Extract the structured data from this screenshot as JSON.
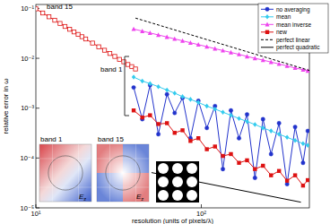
{
  "chart_data": {
    "type": "line",
    "x_label": "resolution (units of pixels/λ)",
    "y_label": "relative error in ω",
    "log": true,
    "grid": false,
    "legend": "upper right",
    "xlim": [
      10,
      450
    ],
    "ylim": [
      1e-05,
      0.12
    ],
    "xticks": [
      {
        "value": 10,
        "label": "10¹"
      },
      {
        "value": 100,
        "label": "10²"
      }
    ],
    "yticks": [
      {
        "value": 0.1,
        "label": "10⁻¹"
      },
      {
        "value": 0.01,
        "label": "10⁻²"
      },
      {
        "value": 0.001,
        "label": "10⁻³"
      },
      {
        "value": 0.0001,
        "label": "10⁻⁴"
      },
      {
        "value": 1e-05,
        "label": "10⁻⁵"
      }
    ],
    "annotations": [
      "band 15",
      "band 1",
      "band 1",
      "band 15",
      "Ez",
      "Ez"
    ],
    "series": [
      {
        "name": "no averaging",
        "color": "#2233cc",
        "marker": "circle",
        "line_style": "solid",
        "x": [
          39,
          44,
          49,
          55,
          62,
          69,
          77,
          86,
          96,
          108,
          121,
          135,
          151,
          169,
          189,
          211,
          236,
          264,
          295,
          330,
          369,
          412,
          440
        ],
        "values": [
          0.0026,
          0.0006,
          0.0029,
          0.0003,
          0.0019,
          0.0008,
          0.0016,
          0.00025,
          0.0014,
          0.0004,
          0.0011,
          6e-05,
          0.0009,
          0.00025,
          0.00075,
          4e-05,
          0.0006,
          0.00012,
          0.0005,
          3e-05,
          0.00042,
          8e-05,
          0.00035
        ]
      },
      {
        "name": "mean",
        "color": "#33ccee",
        "marker": "diamond",
        "line_style": "solid",
        "x": [
          39,
          44,
          49,
          55,
          62,
          69,
          77,
          86,
          96,
          108,
          121,
          135,
          151,
          169,
          189,
          211,
          236,
          264,
          295,
          330,
          369,
          412,
          440
        ],
        "values": [
          0.0042,
          0.0035,
          0.0031,
          0.0027,
          0.0023,
          0.002,
          0.0017,
          0.0015,
          0.0013,
          0.0011,
          0.00096,
          0.00083,
          0.00072,
          0.00062,
          0.00054,
          0.00047,
          0.0004,
          0.00035,
          0.0003,
          0.00026,
          0.000225,
          0.000195,
          0.00018
        ]
      },
      {
        "name": "mean inverse",
        "color": "#ee44ee",
        "marker": "triangle",
        "line_style": "solid",
        "x": [
          39,
          44,
          49,
          55,
          62,
          69,
          77,
          86,
          96,
          108,
          121,
          135,
          151,
          169,
          189,
          211,
          236,
          264,
          295,
          330,
          369,
          412,
          440
        ],
        "values": [
          0.0386,
          0.0351,
          0.0322,
          0.0294,
          0.0267,
          0.0245,
          0.0224,
          0.0205,
          0.0188,
          0.0171,
          0.0156,
          0.0143,
          0.0131,
          0.012,
          0.0109,
          0.01,
          0.0092,
          0.0084,
          0.0077,
          0.007,
          0.0064,
          0.0059,
          0.0056
        ]
      },
      {
        "name": "new",
        "color": "#dd1111",
        "marker": "square",
        "line_style": "solid",
        "x": [
          39,
          44,
          49,
          55,
          62,
          69,
          77,
          86,
          96,
          108,
          121,
          135,
          151,
          169,
          189,
          211,
          236,
          264,
          295,
          330,
          369,
          412,
          440
        ],
        "values": [
          0.0009,
          0.00065,
          0.00072,
          0.00048,
          0.0005,
          0.00032,
          0.00036,
          0.00022,
          0.00025,
          0.00015,
          0.00017,
          0.00011,
          0.00012,
          8e-05,
          9e-05,
          6e-05,
          7e-05,
          4.5e-05,
          5.5e-05,
          3.5e-05,
          4.5e-05,
          2.8e-05,
          3.6e-05
        ]
      },
      {
        "name": "perfect linear",
        "color": "#000000",
        "marker": "none",
        "line_style": "dashed",
        "x": [
          40,
          450
        ],
        "values": [
          0.064,
          0.0057
        ]
      },
      {
        "name": "perfect quadratic",
        "color": "#000000",
        "marker": "none",
        "line_style": "solid",
        "x": [
          50,
          400
        ],
        "values": [
          5.1e-05,
          1.3e-05
        ]
      },
      {
        "color": "#dd1111",
        "marker": "open-square",
        "line_style": "solid",
        "x": [
          10,
          11,
          12,
          13,
          14,
          15,
          16,
          17,
          18,
          19,
          20,
          22,
          24,
          26,
          28,
          30,
          32,
          34,
          36,
          38,
          40
        ],
        "values": [
          0.098,
          0.081,
          0.068,
          0.058,
          0.05,
          0.0435,
          0.0382,
          0.0338,
          0.0301,
          0.0271,
          0.0244,
          0.0202,
          0.017,
          0.0145,
          0.0125,
          0.0109,
          0.0095,
          0.0085,
          0.0075,
          0.0068,
          0.0061
        ]
      }
    ]
  }
}
